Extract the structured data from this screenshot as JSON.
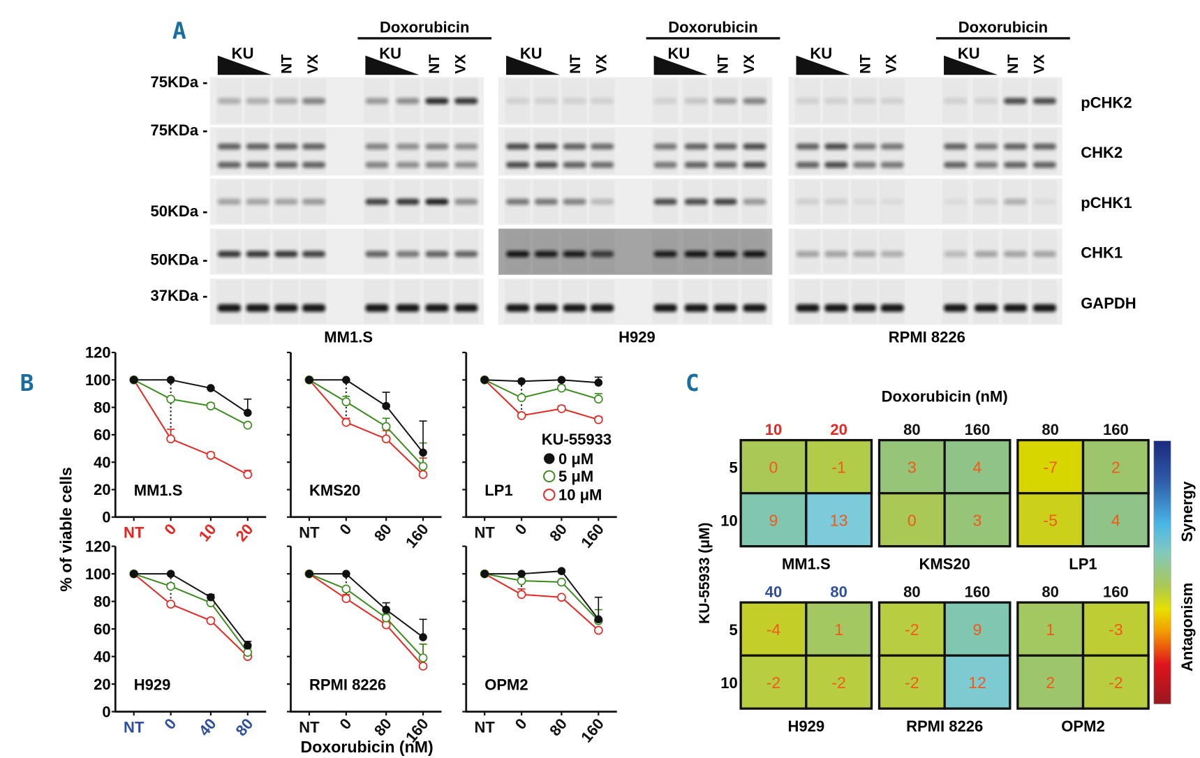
{
  "colors": {
    "panel_label": "#1a6e9e",
    "ku_0": "#111111",
    "ku_5": "#3a8a1e",
    "ku_10": "#e8251f",
    "highlight_red": "#e8251f",
    "highlight_blue": "#2e4f9e",
    "heatmap_value_text": "#f05a1a"
  },
  "panel_labels": {
    "a": "A",
    "b": "B",
    "c": "C"
  },
  "panel_a": {
    "blocks": [
      {
        "cell_line": "MM1.S",
        "ku": "KU",
        "nt": "NT",
        "vx": "VX",
        "treatment_header": "Doxorubicin"
      },
      {
        "cell_line": "H929",
        "ku": "KU",
        "nt": "NT",
        "vx": "VX",
        "treatment_header": "Doxorubicin"
      },
      {
        "cell_line": "RPMI 8226",
        "ku": "KU",
        "nt": "NT",
        "vx": "VX",
        "treatment_header": "Doxorubicin"
      }
    ],
    "mw_markers": [
      "75KDa -",
      "75KDa -",
      "50KDa -",
      "50KDa -",
      "37KDa -"
    ],
    "proteins": [
      "pCHK2",
      "CHK2",
      "pCHK1",
      "CHK1",
      "GAPDH"
    ]
  },
  "panel_b": {
    "ylabel": "% of viable cells",
    "xlabel": "Doxorubicin (nM)",
    "legend": {
      "title": "KU-55933",
      "entries": [
        "0 μM",
        "5 μM",
        "10 μM"
      ]
    }
  },
  "chart_data": [
    {
      "type": "line",
      "title": "MM1.S",
      "tick_color": "red",
      "categories": [
        "NT",
        "0",
        "10",
        "20"
      ],
      "ylim": [
        0,
        120
      ],
      "yticks": [
        0,
        20,
        40,
        60,
        80,
        100,
        120
      ],
      "series": [
        {
          "name": "0 μM",
          "values": [
            100,
            100,
            94,
            76
          ],
          "errors": [
            0,
            0,
            0,
            10
          ]
        },
        {
          "name": "5 μM",
          "values": [
            100,
            86,
            81,
            67
          ],
          "errors": [
            0,
            0,
            2,
            0
          ]
        },
        {
          "name": "10 μM",
          "values": [
            100,
            57,
            45,
            31
          ],
          "errors": [
            0,
            7,
            2,
            3
          ]
        }
      ]
    },
    {
      "type": "line",
      "title": "KMS20",
      "tick_color": "black",
      "categories": [
        "NT",
        "0",
        "80",
        "160"
      ],
      "ylim": [
        0,
        120
      ],
      "yticks": [
        0,
        20,
        40,
        60,
        80,
        100,
        120
      ],
      "series": [
        {
          "name": "0 μM",
          "values": [
            100,
            100,
            81,
            47
          ],
          "errors": [
            0,
            0,
            10,
            23
          ]
        },
        {
          "name": "5 μM",
          "values": [
            100,
            84,
            66,
            37
          ],
          "errors": [
            0,
            4,
            6,
            17
          ]
        },
        {
          "name": "10 μM",
          "values": [
            100,
            69,
            57,
            31
          ],
          "errors": [
            0,
            3,
            6,
            12
          ]
        }
      ]
    },
    {
      "type": "line",
      "title": "LP1",
      "tick_color": "black",
      "categories": [
        "NT",
        "0",
        "80",
        "160"
      ],
      "ylim": [
        0,
        120
      ],
      "yticks": [
        0,
        20,
        40,
        60,
        80,
        100,
        120
      ],
      "series": [
        {
          "name": "0 μM",
          "values": [
            100,
            99,
            100,
            98
          ],
          "errors": [
            0,
            0,
            0,
            4
          ]
        },
        {
          "name": "5 μM",
          "values": [
            100,
            87,
            94,
            86
          ],
          "errors": [
            0,
            0,
            2,
            4
          ]
        },
        {
          "name": "10 μM",
          "values": [
            100,
            74,
            79,
            71
          ],
          "errors": [
            0,
            0,
            2,
            2
          ]
        }
      ]
    },
    {
      "type": "line",
      "title": "H929",
      "tick_color": "blue",
      "categories": [
        "NT",
        "0",
        "40",
        "80"
      ],
      "ylim": [
        0,
        120
      ],
      "yticks": [
        0,
        20,
        40,
        60,
        80,
        100,
        120
      ],
      "series": [
        {
          "name": "0 μM",
          "values": [
            100,
            100,
            83,
            48
          ],
          "errors": [
            0,
            0,
            2,
            3
          ]
        },
        {
          "name": "5 μM",
          "values": [
            100,
            91,
            79,
            43
          ],
          "errors": [
            0,
            2,
            0,
            3
          ]
        },
        {
          "name": "10 μM",
          "values": [
            100,
            78,
            66,
            40
          ],
          "errors": [
            0,
            0,
            0,
            0
          ]
        }
      ]
    },
    {
      "type": "line",
      "title": "RPMI 8226",
      "tick_color": "black",
      "categories": [
        "NT",
        "0",
        "80",
        "160"
      ],
      "ylim": [
        0,
        120
      ],
      "yticks": [
        0,
        20,
        40,
        60,
        80,
        100,
        120
      ],
      "series": [
        {
          "name": "0 μM",
          "values": [
            100,
            100,
            74,
            54
          ],
          "errors": [
            0,
            0,
            5,
            13
          ]
        },
        {
          "name": "5 μM",
          "values": [
            100,
            89,
            68,
            39
          ],
          "errors": [
            0,
            0,
            3,
            10
          ]
        },
        {
          "name": "10 μM",
          "values": [
            100,
            82,
            63,
            33
          ],
          "errors": [
            0,
            3,
            3,
            16
          ]
        }
      ]
    },
    {
      "type": "line",
      "title": "OPM2",
      "tick_color": "black",
      "categories": [
        "NT",
        "0",
        "80",
        "160"
      ],
      "ylim": [
        0,
        120
      ],
      "yticks": [
        0,
        20,
        40,
        60,
        80,
        100,
        120
      ],
      "series": [
        {
          "name": "0 μM",
          "values": [
            100,
            100,
            102,
            67
          ],
          "errors": [
            0,
            0,
            0,
            16
          ]
        },
        {
          "name": "5 μM",
          "values": [
            100,
            95,
            94,
            66
          ],
          "errors": [
            0,
            2,
            0,
            8
          ]
        },
        {
          "name": "10 μM",
          "values": [
            100,
            85,
            83,
            59
          ],
          "errors": [
            0,
            4,
            0,
            0
          ]
        }
      ]
    },
    {
      "type": "heatmap",
      "title": "Doxorubicin (nM)",
      "ylabel": "KU-55933 (μM)",
      "colorbar": {
        "top_label": "Synergy",
        "bottom_label": "Antagonism"
      },
      "panels": [
        {
          "cell_line": "MM1.S",
          "header_color": "red",
          "columns": [
            "10",
            "20"
          ],
          "rows": [
            "5",
            "10"
          ],
          "values": [
            [
              0,
              -1
            ],
            [
              9,
              13
            ]
          ]
        },
        {
          "cell_line": "KMS20",
          "header_color": "black",
          "columns": [
            "80",
            "160"
          ],
          "rows": [
            "5",
            "10"
          ],
          "values": [
            [
              3,
              4
            ],
            [
              0,
              3
            ]
          ]
        },
        {
          "cell_line": "LP1",
          "header_color": "black",
          "columns": [
            "80",
            "160"
          ],
          "rows": [
            "5",
            "10"
          ],
          "values": [
            [
              -7,
              2
            ],
            [
              -5,
              4
            ]
          ]
        },
        {
          "cell_line": "H929",
          "header_color": "blue",
          "columns": [
            "40",
            "80"
          ],
          "rows": [
            "5",
            "10"
          ],
          "values": [
            [
              -4,
              1
            ],
            [
              -2,
              -2
            ]
          ]
        },
        {
          "cell_line": "RPMI 8226",
          "header_color": "black",
          "columns": [
            "80",
            "160"
          ],
          "rows": [
            "5",
            "10"
          ],
          "values": [
            [
              -2,
              9
            ],
            [
              -2,
              12
            ]
          ]
        },
        {
          "cell_line": "OPM2",
          "header_color": "black",
          "columns": [
            "80",
            "160"
          ],
          "rows": [
            "5",
            "10"
          ],
          "values": [
            [
              1,
              -3
            ],
            [
              2,
              -2
            ]
          ]
        }
      ]
    }
  ]
}
